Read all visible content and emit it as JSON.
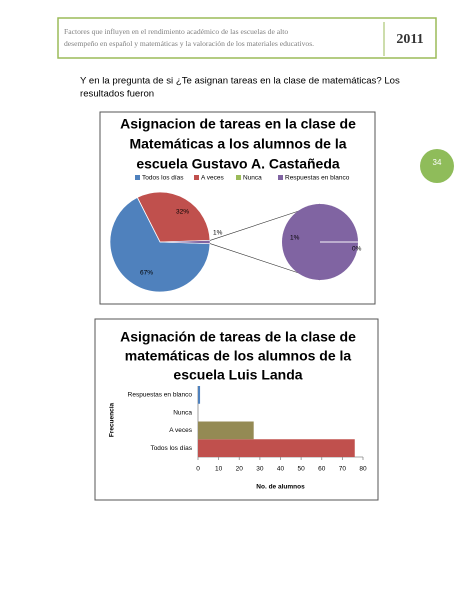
{
  "header": {
    "title_lines": [
      "Factores que influyen  en el rendimiento académico de las escuelas de alto",
      "desempeño en español y matemáticas y la valoración de los materiales educativos."
    ],
    "year": "2011"
  },
  "page_number": "34",
  "paragraph_lines": [
    "Y en la pregunta de si ¿Te asignan tareas en la clase de matemáticas? Los",
    "resultados fueron"
  ],
  "charts": [
    {
      "type": "pie-of-pie",
      "title_lines": [
        "Asignacion de tareas en la clase de",
        "Matemáticas a los alumnos de la",
        "escuela Gustavo A. Castañeda"
      ],
      "categories": [
        "Todos los días",
        "A veces",
        "Nunca",
        "Respuestas en blanco"
      ],
      "values": [
        67,
        32,
        0,
        1
      ],
      "value_labels": [
        "67%",
        "32%",
        "0%",
        "1%"
      ],
      "colors": [
        "#4f81bd",
        "#c0504d",
        "#9bbb59",
        "#8064a2"
      ],
      "secondary_total": {
        "value": 1,
        "label": "1%"
      },
      "legend": "top"
    },
    {
      "type": "hbar",
      "title_lines": [
        "Asignación de tareas de la clase de",
        "matemáticas de los alumnos de la",
        "escuela Luis Landa"
      ],
      "categories": [
        "Todos los días",
        "A veces",
        "Nunca",
        "Respuestas en blanco"
      ],
      "values": [
        76,
        27,
        0,
        1
      ],
      "colors": [
        "#c0504d",
        "#948a54",
        "#9bbb59",
        "#4f81bd"
      ],
      "xlim": [
        0,
        80
      ],
      "xticks": [
        0,
        10,
        20,
        30,
        40,
        50,
        60,
        70,
        80
      ],
      "xlabel": "No. de alumnos",
      "ylabel": "Frecuencia"
    }
  ]
}
